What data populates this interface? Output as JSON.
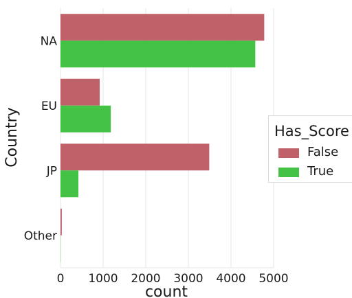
{
  "chart_data": {
    "type": "bar",
    "orientation": "horizontal",
    "categories": [
      "NA",
      "EU",
      "JP",
      "Other"
    ],
    "series": [
      {
        "name": "False",
        "values": [
          4780,
          920,
          3490,
          30
        ],
        "color": "#c0616a"
      },
      {
        "name": "True",
        "values": [
          4570,
          1180,
          420,
          5
        ],
        "color": "#44c246"
      }
    ],
    "xlabel": "count",
    "ylabel": "Country",
    "xlim": [
      0,
      5000
    ],
    "xticks": [
      0,
      1000,
      2000,
      3000,
      4000,
      5000
    ],
    "grid": "vertical",
    "legend": {
      "title": "Has_Score",
      "placement": "right"
    }
  }
}
